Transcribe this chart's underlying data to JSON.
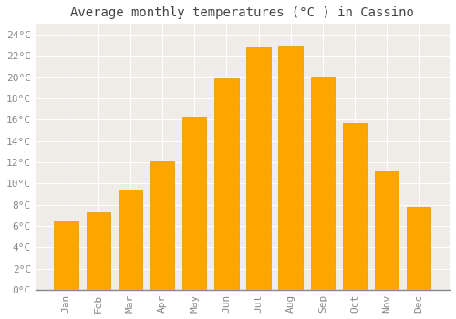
{
  "title": "Average monthly temperatures (°C ) in Cassino",
  "months": [
    "Jan",
    "Feb",
    "Mar",
    "Apr",
    "May",
    "Jun",
    "Jul",
    "Aug",
    "Sep",
    "Oct",
    "Nov",
    "Dec"
  ],
  "values": [
    6.5,
    7.3,
    9.4,
    12.1,
    16.3,
    19.9,
    22.8,
    22.9,
    20.0,
    15.7,
    11.1,
    7.8
  ],
  "bar_color": "#FFA500",
  "bar_edge_color": "#E69500",
  "plot_bg_color": "#F0EDE8",
  "fig_bg_color": "#FFFFFF",
  "grid_color": "#FFFFFF",
  "ylim": [
    0,
    25
  ],
  "yticks": [
    0,
    2,
    4,
    6,
    8,
    10,
    12,
    14,
    16,
    18,
    20,
    22,
    24
  ],
  "title_fontsize": 10,
  "tick_fontsize": 8,
  "title_font": "monospace",
  "tick_font": "monospace"
}
